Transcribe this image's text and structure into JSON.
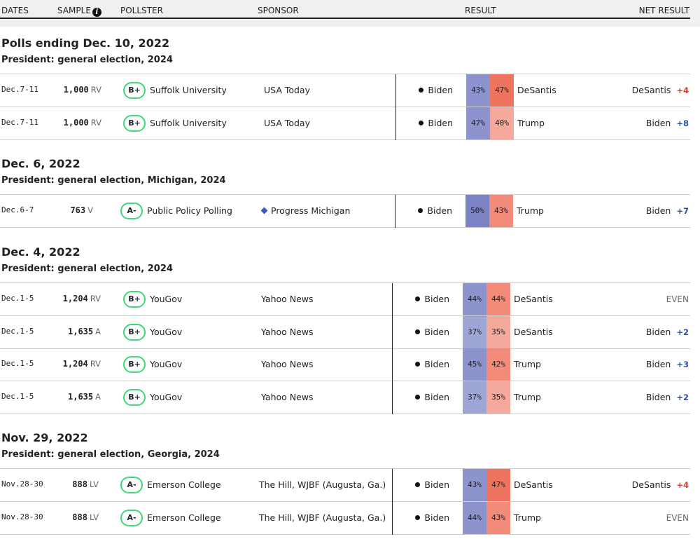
{
  "header": {
    "dates": "DATES",
    "sample": "SAMPLE",
    "pollster": "POLLSTER",
    "sponsor": "SPONSOR",
    "result": "RESULT",
    "net_result": "NET RESULT",
    "info_glyph": "i"
  },
  "colors": {
    "grade_ring": "#3dd878",
    "dem_margin": "#2b4fa3",
    "rep_margin": "#d9382a",
    "dem_shades": [
      "#9ea6d6",
      "#8d94cd",
      "#7b83c4"
    ],
    "rep_shades": [
      "#f4a99c",
      "#f38b7b",
      "#ee7460"
    ]
  },
  "groups": [
    {
      "date": "Polls ending Dec. 10, 2022",
      "race": "President: general election, 2024",
      "rows": [
        {
          "dates": "Dec.7-11",
          "sample": "1,000",
          "population": "RV",
          "grade": "B+",
          "pollster": "Suffolk University",
          "sponsor": "USA Today",
          "sponsor_icon": "",
          "cand1": "Biden",
          "pct1": "43%",
          "cand2": "DeSantis",
          "pct2": "47%",
          "net_leader": "DeSantis",
          "net_margin": "+4",
          "net_party": "rep"
        },
        {
          "dates": "Dec.7-11",
          "sample": "1,000",
          "population": "RV",
          "grade": "B+",
          "pollster": "Suffolk University",
          "sponsor": "USA Today",
          "sponsor_icon": "",
          "cand1": "Biden",
          "pct1": "47%",
          "cand2": "Trump",
          "pct2": "40%",
          "net_leader": "Biden",
          "net_margin": "+8",
          "net_party": "dem"
        }
      ]
    },
    {
      "date": "Dec. 6, 2022",
      "race": "President: general election, Michigan, 2024",
      "rows": [
        {
          "dates": "Dec.6-7",
          "sample": "763",
          "population": "V",
          "grade": "A-",
          "pollster": "Public Policy Polling",
          "sponsor": "Progress Michigan",
          "sponsor_icon": "diamond-icon",
          "cand1": "Biden",
          "pct1": "50%",
          "cand2": "Trump",
          "pct2": "43%",
          "net_leader": "Biden",
          "net_margin": "+7",
          "net_party": "dem"
        }
      ]
    },
    {
      "date": "Dec. 4, 2022",
      "race": "President: general election, 2024",
      "rows": [
        {
          "dates": "Dec.1-5",
          "sample": "1,204",
          "population": "RV",
          "grade": "B+",
          "pollster": "YouGov",
          "sponsor": "Yahoo News",
          "sponsor_icon": "",
          "cand1": "Biden",
          "pct1": "44%",
          "cand2": "DeSantis",
          "pct2": "44%",
          "net_leader": "",
          "net_margin": "EVEN",
          "net_party": "even"
        },
        {
          "dates": "Dec.1-5",
          "sample": "1,635",
          "population": "A",
          "grade": "B+",
          "pollster": "YouGov",
          "sponsor": "Yahoo News",
          "sponsor_icon": "",
          "cand1": "Biden",
          "pct1": "37%",
          "cand2": "DeSantis",
          "pct2": "35%",
          "net_leader": "Biden",
          "net_margin": "+2",
          "net_party": "dem"
        },
        {
          "dates": "Dec.1-5",
          "sample": "1,204",
          "population": "RV",
          "grade": "B+",
          "pollster": "YouGov",
          "sponsor": "Yahoo News",
          "sponsor_icon": "",
          "cand1": "Biden",
          "pct1": "45%",
          "cand2": "Trump",
          "pct2": "42%",
          "net_leader": "Biden",
          "net_margin": "+3",
          "net_party": "dem"
        },
        {
          "dates": "Dec.1-5",
          "sample": "1,635",
          "population": "A",
          "grade": "B+",
          "pollster": "YouGov",
          "sponsor": "Yahoo News",
          "sponsor_icon": "",
          "cand1": "Biden",
          "pct1": "37%",
          "cand2": "Trump",
          "pct2": "35%",
          "net_leader": "Biden",
          "net_margin": "+2",
          "net_party": "dem"
        }
      ]
    },
    {
      "date": "Nov. 29, 2022",
      "race": "President: general election, Georgia, 2024",
      "rows": [
        {
          "dates": "Nov.28-30",
          "sample": "888",
          "population": "LV",
          "grade": "A-",
          "pollster": "Emerson College",
          "sponsor": "The Hill, WJBF (Augusta, Ga.)",
          "sponsor_icon": "",
          "cand1": "Biden",
          "pct1": "43%",
          "cand2": "DeSantis",
          "pct2": "47%",
          "net_leader": "DeSantis",
          "net_margin": "+4",
          "net_party": "rep"
        },
        {
          "dates": "Nov.28-30",
          "sample": "888",
          "population": "LV",
          "grade": "A-",
          "pollster": "Emerson College",
          "sponsor": "The Hill, WJBF (Augusta, Ga.)",
          "sponsor_icon": "",
          "cand1": "Biden",
          "pct1": "44%",
          "cand2": "Trump",
          "pct2": "43%",
          "net_leader": "",
          "net_margin": "EVEN",
          "net_party": "even"
        }
      ]
    }
  ]
}
